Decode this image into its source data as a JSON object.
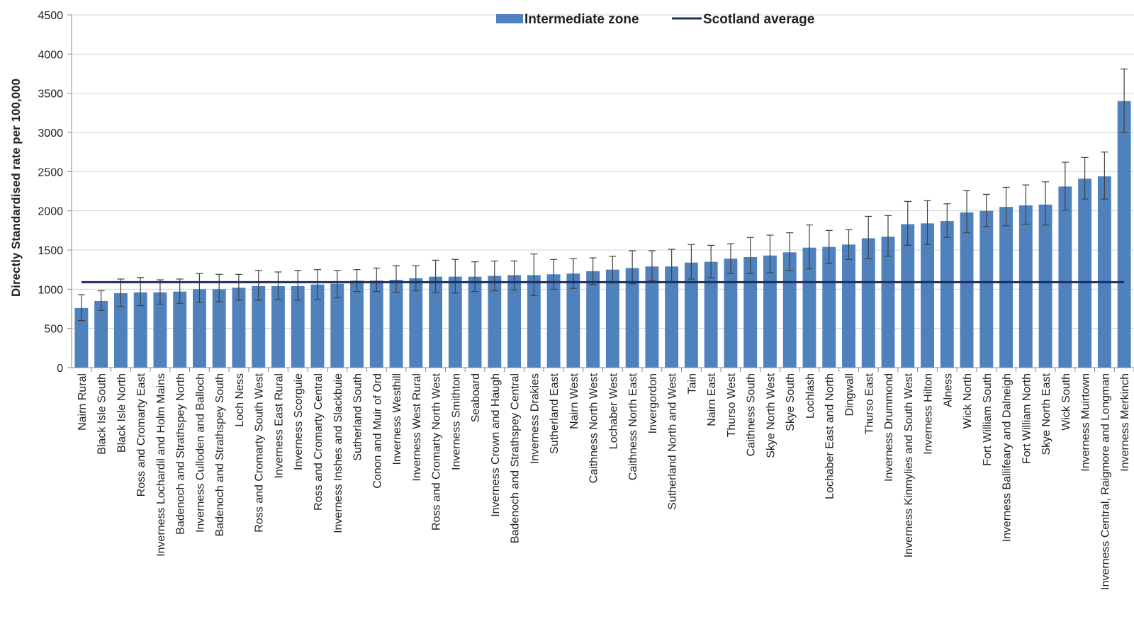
{
  "chart_data": {
    "type": "bar",
    "title": "",
    "xlabel": "",
    "ylabel": "Directly Standardised rate per 100,000",
    "ylim": [
      0,
      4500
    ],
    "yticks": [
      0,
      500,
      1000,
      1500,
      2000,
      2500,
      3000,
      3500,
      4000,
      4500
    ],
    "grid": true,
    "legend_position": "top",
    "colors": {
      "bar": "#4f81bd",
      "average_line": "#1f2d5c",
      "error_bar": "#404040",
      "grid": "#d0d0d0"
    },
    "categories": [
      "Nairn Rural",
      "Black Isle South",
      "Black Isle North",
      "Ross and Cromarty East",
      "Inverness Lochardil and Holm Mains",
      "Badenoch and Strathspey North",
      "Inverness Culloden and Balloch",
      "Badenoch and Strathspey South",
      "Loch Ness",
      "Ross and Cromarty South West",
      "Inverness East Rural",
      "Inverness Scorguie",
      "Ross and Cromarty Central",
      "Inverness Inshes and Slackbuie",
      "Sutherland South",
      "Conon and Muir of Ord",
      "Inverness Westhill",
      "Inverness West Rural",
      "Ross and Cromarty North West",
      "Inverness Smithton",
      "Seaboard",
      "Inverness Crown and Haugh",
      "Badenoch and Strathspey Central",
      "Inverness Drakies",
      "Sutherland East",
      "Nairn West",
      "Caithness North West",
      "Lochaber West",
      "Caithness North East",
      "Invergordon",
      "Sutherland North and West",
      "Tain",
      "Nairn East",
      "Thurso West",
      "Caithness South",
      "Skye North West",
      "Skye South",
      "Lochlash",
      "Lochaber East and North",
      "Dingwall",
      "Thurso East",
      "Inverness Drummond",
      "Inverness Kinmylies and South West",
      "Inverness Hilton",
      "Alness",
      "Wick North",
      "Fort William South",
      "Inverness Ballifeary and Dalneigh",
      "Fort William North",
      "Skye North East",
      "Wick South",
      "Inverness Muirtown",
      "Inverness Central, Raigmore and Longman",
      "Inverness Merkinch"
    ],
    "series": [
      {
        "name": "Intermediate zone",
        "values": [
          760,
          850,
          950,
          960,
          960,
          970,
          1000,
          1000,
          1020,
          1040,
          1040,
          1040,
          1060,
          1070,
          1110,
          1110,
          1120,
          1140,
          1160,
          1160,
          1160,
          1170,
          1180,
          1180,
          1190,
          1200,
          1230,
          1250,
          1270,
          1290,
          1290,
          1340,
          1350,
          1390,
          1410,
          1430,
          1470,
          1530,
          1540,
          1570,
          1650,
          1670,
          1830,
          1840,
          1870,
          1980,
          2000,
          2050,
          2070,
          2080,
          2310,
          2410,
          2440,
          3400
        ],
        "ci_lower": [
          600,
          730,
          780,
          790,
          810,
          820,
          830,
          840,
          860,
          860,
          870,
          860,
          870,
          890,
          970,
          970,
          960,
          980,
          960,
          950,
          970,
          980,
          990,
          920,
          1000,
          1010,
          1060,
          1080,
          1070,
          1110,
          1090,
          1130,
          1150,
          1200,
          1200,
          1210,
          1240,
          1260,
          1330,
          1380,
          1390,
          1420,
          1560,
          1570,
          1660,
          1720,
          1800,
          1810,
          1830,
          1820,
          2010,
          2150,
          2150,
          3000
        ],
        "ci_upper": [
          930,
          980,
          1130,
          1150,
          1120,
          1130,
          1200,
          1190,
          1190,
          1240,
          1220,
          1240,
          1250,
          1240,
          1250,
          1270,
          1300,
          1300,
          1370,
          1380,
          1350,
          1360,
          1360,
          1450,
          1380,
          1390,
          1400,
          1420,
          1490,
          1490,
          1510,
          1570,
          1560,
          1580,
          1660,
          1690,
          1720,
          1820,
          1750,
          1760,
          1930,
          1940,
          2120,
          2130,
          2090,
          2260,
          2210,
          2300,
          2330,
          2370,
          2620,
          2680,
          2750,
          3810
        ]
      },
      {
        "name": "Scotland average",
        "type": "line",
        "value": 1090
      }
    ]
  }
}
